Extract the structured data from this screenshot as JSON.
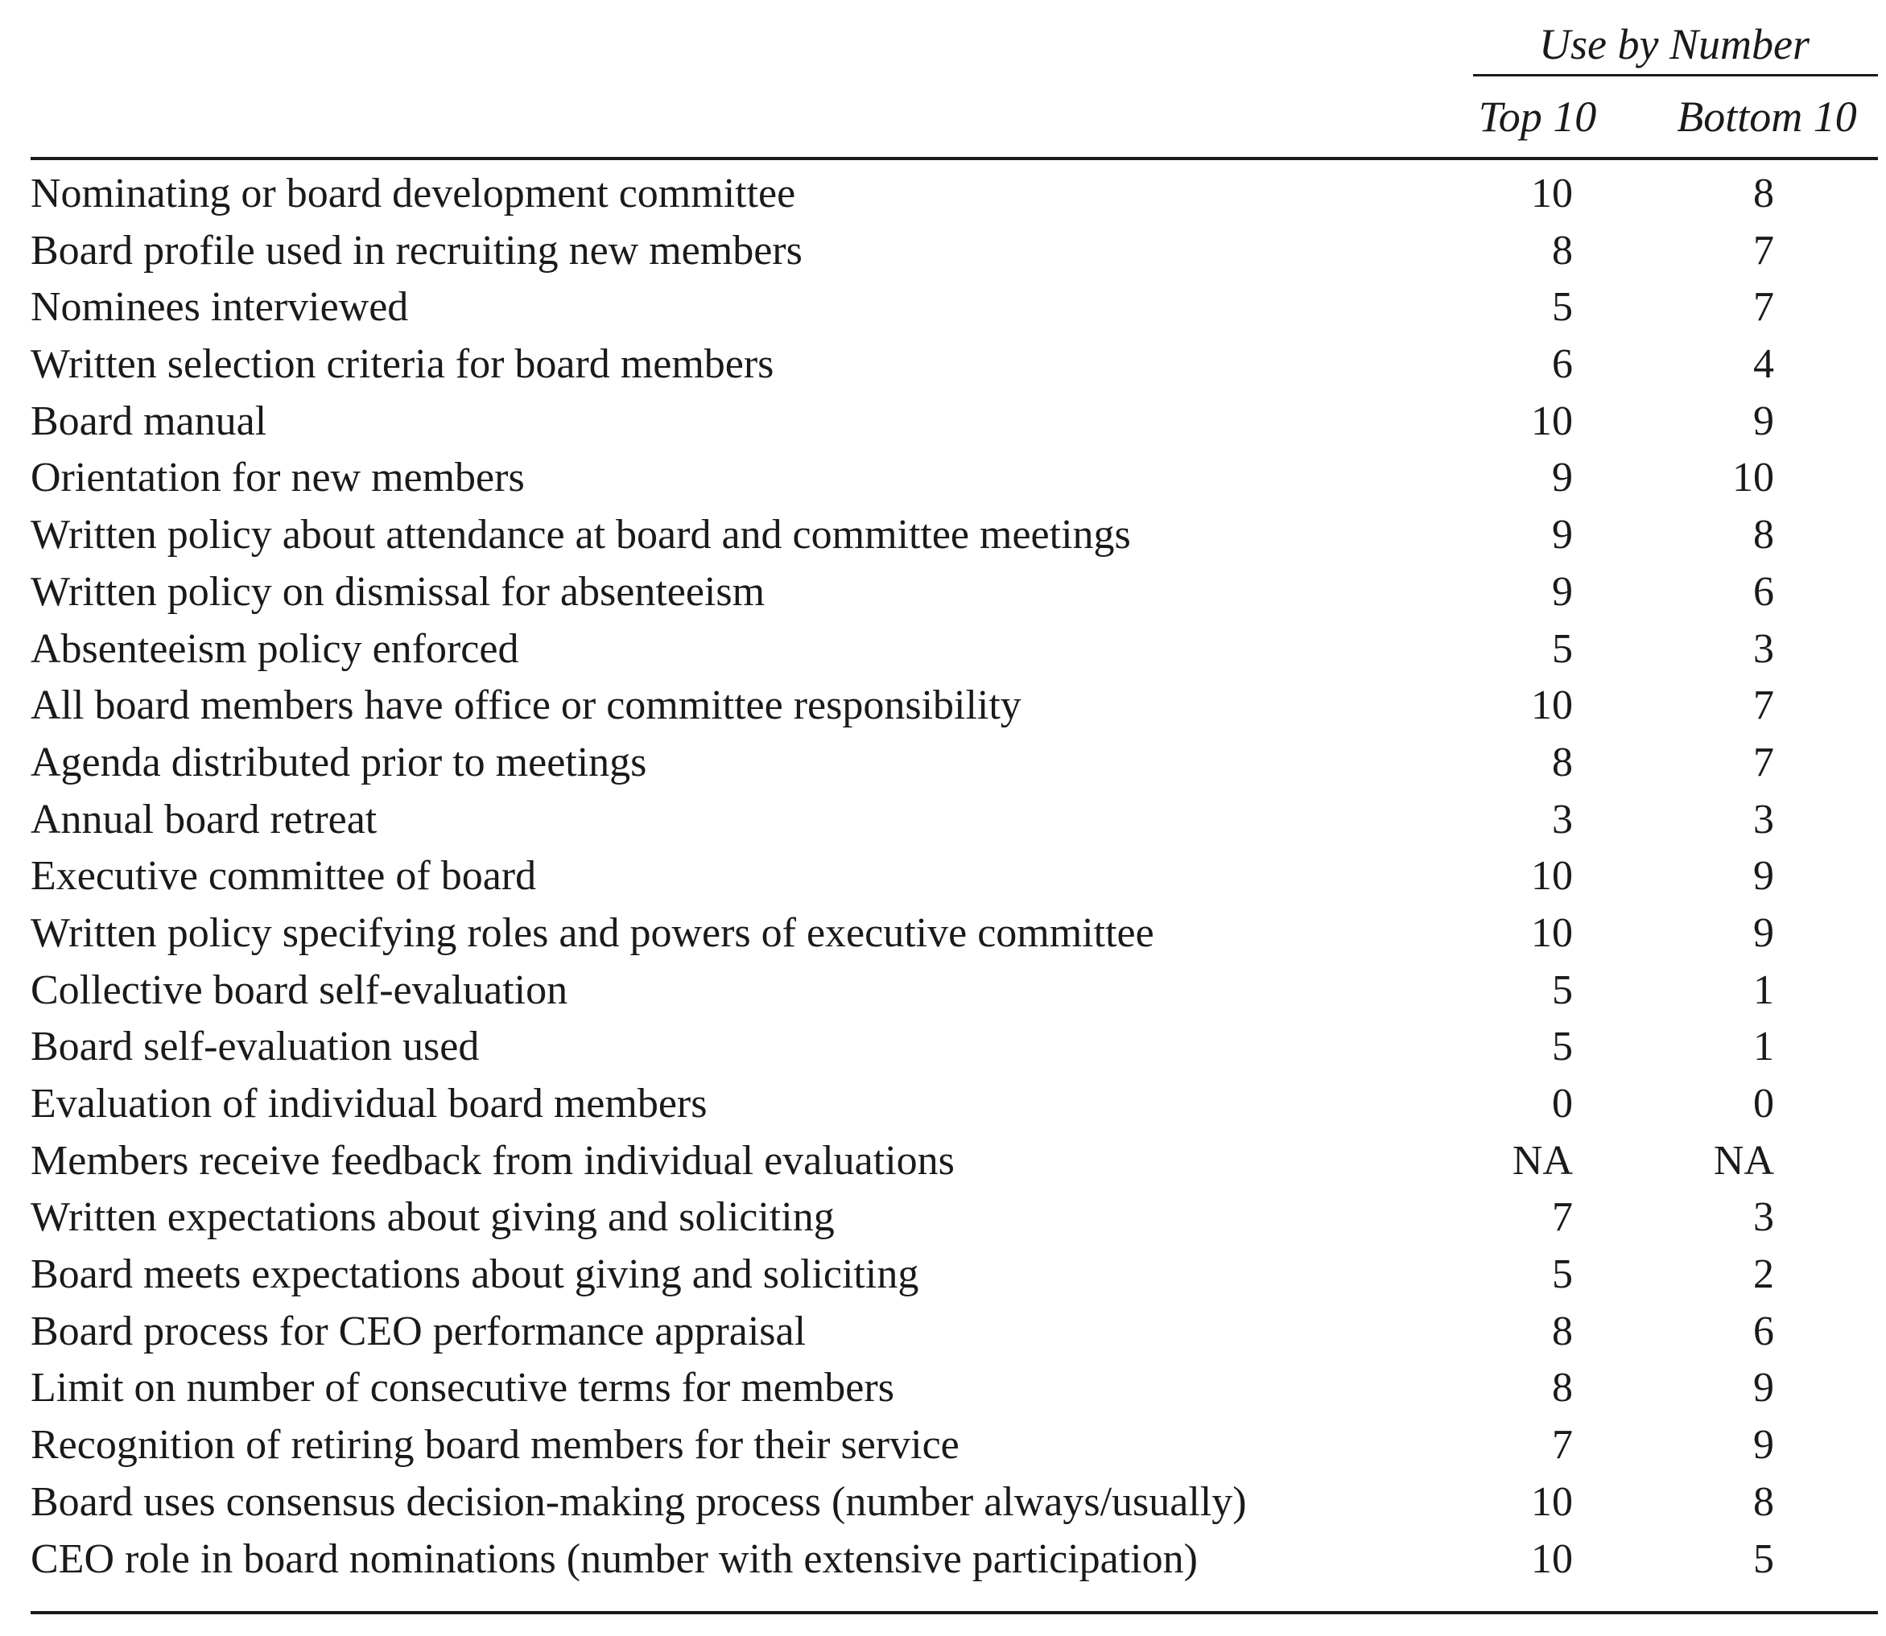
{
  "header": {
    "group_label": "Use by Number",
    "col_top": "Top 10",
    "col_bottom": "Bottom 10"
  },
  "rows": [
    {
      "label": "Nominating or board development committee",
      "top10": "10",
      "bottom10": "8"
    },
    {
      "label": "Board profile used in recruiting new members",
      "top10": "8",
      "bottom10": "7"
    },
    {
      "label": "Nominees interviewed",
      "top10": "5",
      "bottom10": "7"
    },
    {
      "label": "Written selection criteria for board members",
      "top10": "6",
      "bottom10": "4"
    },
    {
      "label": "Board manual",
      "top10": "10",
      "bottom10": "9"
    },
    {
      "label": "Orientation for new members",
      "top10": "9",
      "bottom10": "10"
    },
    {
      "label": "Written policy about attendance at board and committee meetings",
      "top10": "9",
      "bottom10": "8"
    },
    {
      "label": "Written policy on dismissal for absenteeism",
      "top10": "9",
      "bottom10": "6"
    },
    {
      "label": "Absenteeism policy enforced",
      "top10": "5",
      "bottom10": "3"
    },
    {
      "label": "All board members have office or committee responsibility",
      "top10": "10",
      "bottom10": "7"
    },
    {
      "label": "Agenda distributed prior to meetings",
      "top10": "8",
      "bottom10": "7"
    },
    {
      "label": "Annual board retreat",
      "top10": "3",
      "bottom10": "3"
    },
    {
      "label": "Executive committee of board",
      "top10": "10",
      "bottom10": "9"
    },
    {
      "label": "Written policy specifying roles and powers of executive committee",
      "top10": "10",
      "bottom10": "9"
    },
    {
      "label": "Collective board self-evaluation",
      "top10": "5",
      "bottom10": "1"
    },
    {
      "label": "Board self-evaluation used",
      "top10": "5",
      "bottom10": "1"
    },
    {
      "label": "Evaluation of individual board members",
      "top10": "0",
      "bottom10": "0"
    },
    {
      "label": "Members receive feedback from individual evaluations",
      "top10": "NA",
      "bottom10": "NA"
    },
    {
      "label": "Written expectations about giving and soliciting",
      "top10": "7",
      "bottom10": "3"
    },
    {
      "label": "Board meets expectations about giving and soliciting",
      "top10": "5",
      "bottom10": "2"
    },
    {
      "label": "Board process for CEO performance appraisal",
      "top10": "8",
      "bottom10": "6"
    },
    {
      "label": "Limit on number of consecutive terms for members",
      "top10": "8",
      "bottom10": "9"
    },
    {
      "label": "Recognition of retiring board members for their service",
      "top10": "7",
      "bottom10": "9"
    },
    {
      "label": "Board uses consensus decision-making process (number always/usually)",
      "top10": "10",
      "bottom10": "8"
    },
    {
      "label": "CEO role in board nominations (number with extensive participation)",
      "top10": "10",
      "bottom10": "5"
    }
  ]
}
